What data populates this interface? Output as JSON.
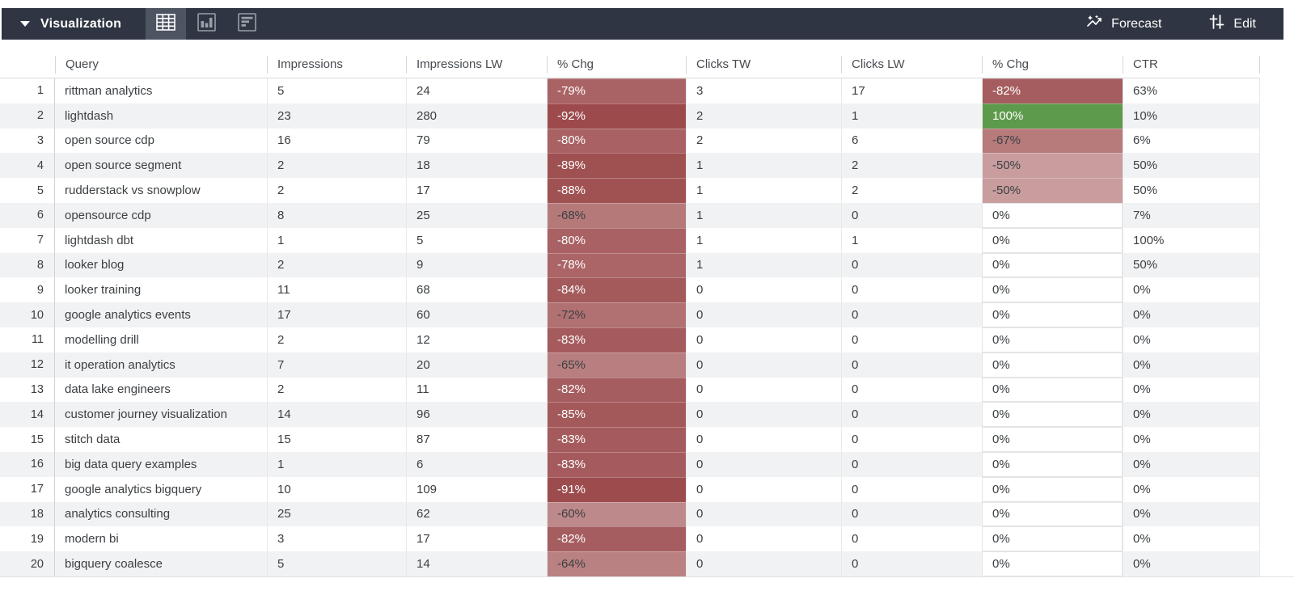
{
  "toolbar": {
    "title": "Visualization",
    "view_buttons": [
      {
        "name": "table-view",
        "active": true
      },
      {
        "name": "bar-chart-view",
        "active": false
      },
      {
        "name": "row-chart-view",
        "active": false
      }
    ],
    "forecast_label": "Forecast",
    "edit_label": "Edit"
  },
  "table": {
    "columns": [
      "Query",
      "Impressions",
      "Impressions LW",
      "% Chg",
      "Clicks TW",
      "Clicks LW",
      "% Chg",
      "CTR"
    ],
    "rows": [
      {
        "n": 1,
        "query": "rittman analytics",
        "impressions": 5,
        "impressions_lw": 24,
        "chg_impressions": -79,
        "clicks_tw": 3,
        "clicks_lw": 17,
        "chg_clicks": -82,
        "ctr": 63
      },
      {
        "n": 2,
        "query": "lightdash",
        "impressions": 23,
        "impressions_lw": 280,
        "chg_impressions": -92,
        "clicks_tw": 2,
        "clicks_lw": 1,
        "chg_clicks": 100,
        "ctr": 10
      },
      {
        "n": 3,
        "query": "open source cdp",
        "impressions": 16,
        "impressions_lw": 79,
        "chg_impressions": -80,
        "clicks_tw": 2,
        "clicks_lw": 6,
        "chg_clicks": -67,
        "ctr": 6
      },
      {
        "n": 4,
        "query": "open source segment",
        "impressions": 2,
        "impressions_lw": 18,
        "chg_impressions": -89,
        "clicks_tw": 1,
        "clicks_lw": 2,
        "chg_clicks": -50,
        "ctr": 50
      },
      {
        "n": 5,
        "query": "rudderstack vs snowplow",
        "impressions": 2,
        "impressions_lw": 17,
        "chg_impressions": -88,
        "clicks_tw": 1,
        "clicks_lw": 2,
        "chg_clicks": -50,
        "ctr": 50
      },
      {
        "n": 6,
        "query": "opensource cdp",
        "impressions": 8,
        "impressions_lw": 25,
        "chg_impressions": -68,
        "clicks_tw": 1,
        "clicks_lw": 0,
        "chg_clicks": 0,
        "ctr": 7
      },
      {
        "n": 7,
        "query": "lightdash dbt",
        "impressions": 1,
        "impressions_lw": 5,
        "chg_impressions": -80,
        "clicks_tw": 1,
        "clicks_lw": 1,
        "chg_clicks": 0,
        "ctr": 100
      },
      {
        "n": 8,
        "query": "looker blog",
        "impressions": 2,
        "impressions_lw": 9,
        "chg_impressions": -78,
        "clicks_tw": 1,
        "clicks_lw": 0,
        "chg_clicks": 0,
        "ctr": 50
      },
      {
        "n": 9,
        "query": "looker training",
        "impressions": 11,
        "impressions_lw": 68,
        "chg_impressions": -84,
        "clicks_tw": 0,
        "clicks_lw": 0,
        "chg_clicks": 0,
        "ctr": 0
      },
      {
        "n": 10,
        "query": "google analytics events",
        "impressions": 17,
        "impressions_lw": 60,
        "chg_impressions": -72,
        "clicks_tw": 0,
        "clicks_lw": 0,
        "chg_clicks": 0,
        "ctr": 0
      },
      {
        "n": 11,
        "query": "modelling drill",
        "impressions": 2,
        "impressions_lw": 12,
        "chg_impressions": -83,
        "clicks_tw": 0,
        "clicks_lw": 0,
        "chg_clicks": 0,
        "ctr": 0
      },
      {
        "n": 12,
        "query": "it operation analytics",
        "impressions": 7,
        "impressions_lw": 20,
        "chg_impressions": -65,
        "clicks_tw": 0,
        "clicks_lw": 0,
        "chg_clicks": 0,
        "ctr": 0
      },
      {
        "n": 13,
        "query": "data lake engineers",
        "impressions": 2,
        "impressions_lw": 11,
        "chg_impressions": -82,
        "clicks_tw": 0,
        "clicks_lw": 0,
        "chg_clicks": 0,
        "ctr": 0
      },
      {
        "n": 14,
        "query": "customer journey visualization",
        "impressions": 14,
        "impressions_lw": 96,
        "chg_impressions": -85,
        "clicks_tw": 0,
        "clicks_lw": 0,
        "chg_clicks": 0,
        "ctr": 0
      },
      {
        "n": 15,
        "query": "stitch data",
        "impressions": 15,
        "impressions_lw": 87,
        "chg_impressions": -83,
        "clicks_tw": 0,
        "clicks_lw": 0,
        "chg_clicks": 0,
        "ctr": 0
      },
      {
        "n": 16,
        "query": "big data query examples",
        "impressions": 1,
        "impressions_lw": 6,
        "chg_impressions": -83,
        "clicks_tw": 0,
        "clicks_lw": 0,
        "chg_clicks": 0,
        "ctr": 0
      },
      {
        "n": 17,
        "query": "google analytics bigquery",
        "impressions": 10,
        "impressions_lw": 109,
        "chg_impressions": -91,
        "clicks_tw": 0,
        "clicks_lw": 0,
        "chg_clicks": 0,
        "ctr": 0
      },
      {
        "n": 18,
        "query": "analytics consulting",
        "impressions": 25,
        "impressions_lw": 62,
        "chg_impressions": -60,
        "clicks_tw": 0,
        "clicks_lw": 0,
        "chg_clicks": 0,
        "ctr": 0
      },
      {
        "n": 19,
        "query": "modern bi",
        "impressions": 3,
        "impressions_lw": 17,
        "chg_impressions": -82,
        "clicks_tw": 0,
        "clicks_lw": 0,
        "chg_clicks": 0,
        "ctr": 0
      },
      {
        "n": 20,
        "query": "bigquery coalesce",
        "impressions": 5,
        "impressions_lw": 14,
        "chg_impressions": -64,
        "clicks_tw": 0,
        "clicks_lw": 0,
        "chg_clicks": 0,
        "ctr": 0
      }
    ]
  },
  "theme": {
    "toolbar_bg": "#2f3542",
    "toolbar_active_bg": "#4d5462",
    "negative_color": "#933a3c",
    "positive_color": "#5d9a4b",
    "stripe_color": "#f1f2f3",
    "text_color": "#3c4043",
    "heat_text_light": "#ffffff"
  }
}
